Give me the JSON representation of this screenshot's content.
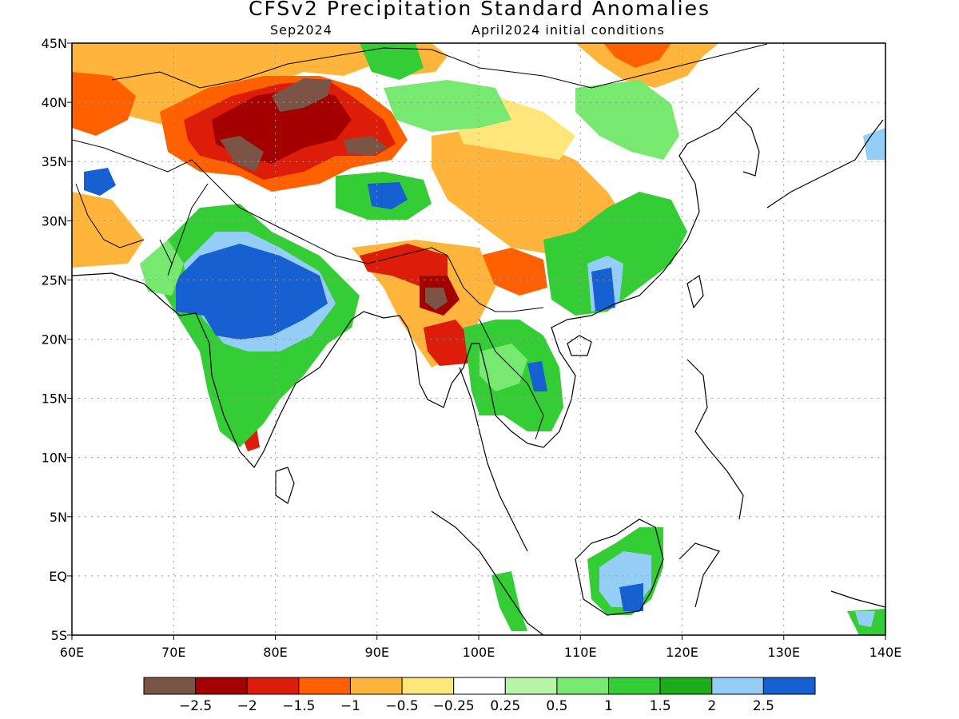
{
  "title": "CFSv2 Precipitation Standard Anomalies",
  "valid_month": "Sep2024",
  "initial_conditions": "April2024 initial conditions",
  "axes": {
    "lon_labels": [
      "60E",
      "70E",
      "80E",
      "90E",
      "100E",
      "110E",
      "120E",
      "130E",
      "140E"
    ],
    "lat_labels": [
      "5S",
      "EQ",
      "5N",
      "10N",
      "15N",
      "20N",
      "25N",
      "30N",
      "35N",
      "40N",
      "45N"
    ]
  },
  "colorbar": {
    "colors": [
      "#7b5446",
      "#a50000",
      "#dc1d0a",
      "#ff6000",
      "#ffb53c",
      "#ffe67a",
      "#ffffff",
      "#b6f5a6",
      "#77e870",
      "#35cd35",
      "#1aac1a",
      "#94cdf5",
      "#1660d2"
    ],
    "labels": [
      "−2.5",
      "−2",
      "−1.5",
      "−1",
      "−0.5",
      "−0.25",
      "0.25",
      "0.5",
      "1",
      "1.5",
      "2",
      "2.5"
    ]
  },
  "colors": {
    "dry_extreme": "#7b5446",
    "dry_strong": "#a50000",
    "dry": "#dc1d0a",
    "dry_moderate": "#ff6000",
    "dry_mild": "#ffb53c",
    "dry_weak": "#ffe67a",
    "neutral": "#ffffff",
    "wet_weak": "#b6f5a6",
    "wet_mild": "#77e870",
    "wet_moderate": "#35cd35",
    "wet": "#1aac1a",
    "wet_strong": "#94cdf5",
    "wet_extreme": "#1660d2"
  }
}
